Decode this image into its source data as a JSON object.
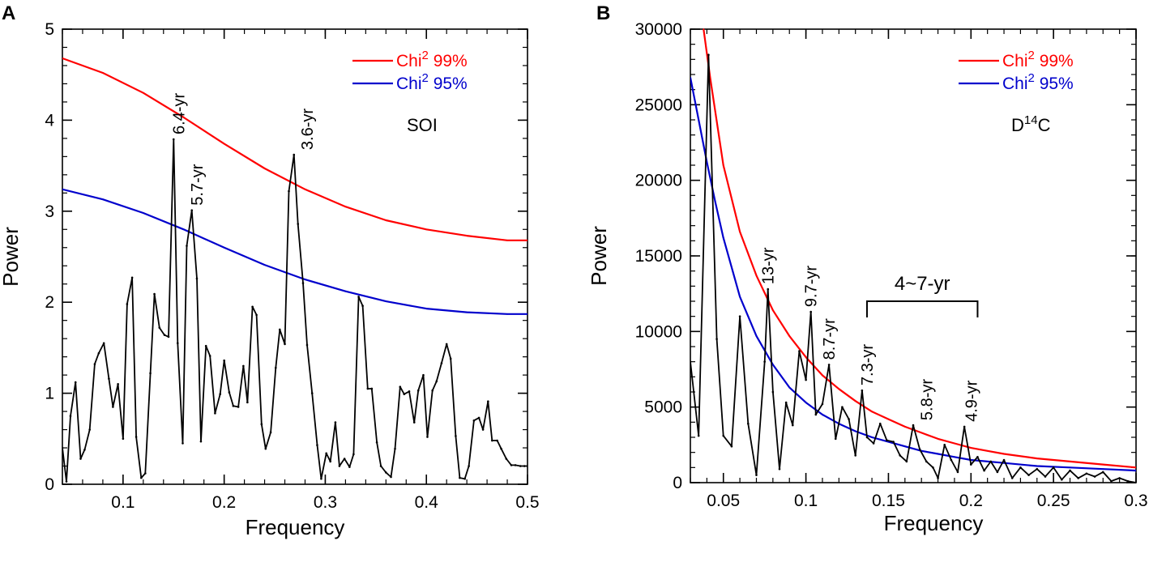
{
  "figure": {
    "panel_a_letter": "A",
    "panel_b_letter": "B"
  },
  "chart_data": [
    {
      "type": "line",
      "panel": "A",
      "title": "",
      "series_label": "SOI",
      "xlabel": "Frequency",
      "ylabel": "Power",
      "xlim": [
        0.04,
        0.5
      ],
      "ylim": [
        0,
        5
      ],
      "xticks": [
        {
          "value": 0.1,
          "label": "0.1"
        },
        {
          "value": 0.2,
          "label": "0.2"
        },
        {
          "value": 0.3,
          "label": "0.3"
        },
        {
          "value": 0.4,
          "label": "0.4"
        },
        {
          "value": 0.5,
          "label": "0.5"
        }
      ],
      "yticks": [
        {
          "value": 0,
          "label": "0"
        },
        {
          "value": 1,
          "label": "1"
        },
        {
          "value": 2,
          "label": "2"
        },
        {
          "value": 3,
          "label": "3"
        },
        {
          "value": 4,
          "label": "4"
        },
        {
          "value": 5,
          "label": "5"
        }
      ],
      "legend": [
        {
          "name": "Chi",
          "sup": "2",
          "suffix": " 99%",
          "color": "#ff0000"
        },
        {
          "name": "Chi",
          "sup": "2",
          "suffix": " 95%",
          "color": "#0000cc"
        }
      ],
      "series": [
        {
          "name": "Chi2 99%",
          "color": "#ff0000",
          "x": [
            0.04,
            0.08,
            0.12,
            0.16,
            0.2,
            0.24,
            0.28,
            0.32,
            0.36,
            0.4,
            0.44,
            0.48,
            0.5
          ],
          "y": [
            4.68,
            4.52,
            4.3,
            4.03,
            3.74,
            3.47,
            3.24,
            3.05,
            2.9,
            2.8,
            2.73,
            2.68,
            2.68
          ]
        },
        {
          "name": "Chi2 95%",
          "color": "#0000cc",
          "x": [
            0.04,
            0.08,
            0.12,
            0.16,
            0.2,
            0.24,
            0.28,
            0.32,
            0.36,
            0.4,
            0.44,
            0.48,
            0.5
          ],
          "y": [
            3.24,
            3.13,
            2.98,
            2.8,
            2.6,
            2.41,
            2.25,
            2.12,
            2.01,
            1.93,
            1.89,
            1.87,
            1.87
          ]
        },
        {
          "name": "SOI power",
          "color": "#000000",
          "x": [
            0.04,
            0.044,
            0.048,
            0.053,
            0.058,
            0.062,
            0.067,
            0.072,
            0.076,
            0.081,
            0.086,
            0.09,
            0.095,
            0.1,
            0.104,
            0.109,
            0.113,
            0.118,
            0.122,
            0.127,
            0.131,
            0.136,
            0.141,
            0.145,
            0.15,
            0.154,
            0.159,
            0.163,
            0.168,
            0.173,
            0.177,
            0.182,
            0.186,
            0.191,
            0.196,
            0.2,
            0.205,
            0.209,
            0.214,
            0.219,
            0.223,
            0.228,
            0.232,
            0.237,
            0.241,
            0.246,
            0.251,
            0.255,
            0.26,
            0.264,
            0.269,
            0.273,
            0.278,
            0.282,
            0.287,
            0.292,
            0.296,
            0.301,
            0.305,
            0.31,
            0.314,
            0.319,
            0.324,
            0.328,
            0.333,
            0.337,
            0.342,
            0.346,
            0.351,
            0.355,
            0.36,
            0.365,
            0.369,
            0.374,
            0.378,
            0.383,
            0.388,
            0.392,
            0.397,
            0.401,
            0.406,
            0.41,
            0.415,
            0.42,
            0.424,
            0.429,
            0.433,
            0.438,
            0.442,
            0.447,
            0.452,
            0.456,
            0.461,
            0.465,
            0.47,
            0.474,
            0.479,
            0.484,
            0.488,
            0.493,
            0.497,
            0.5
          ],
          "y": [
            0.4,
            0.03,
            0.75,
            1.12,
            0.28,
            0.38,
            0.6,
            1.32,
            1.44,
            1.55,
            1.16,
            0.85,
            1.1,
            0.5,
            1.98,
            2.27,
            0.52,
            0.07,
            0.12,
            1.22,
            2.09,
            1.72,
            1.64,
            1.62,
            3.79,
            1.55,
            0.45,
            2.62,
            3.01,
            2.26,
            0.47,
            1.52,
            1.41,
            0.78,
            0.99,
            1.36,
            1.01,
            0.86,
            0.85,
            1.3,
            0.9,
            1.95,
            1.86,
            0.66,
            0.39,
            0.57,
            1.28,
            1.7,
            1.54,
            3.22,
            3.62,
            2.86,
            2.21,
            1.53,
            1.0,
            0.43,
            0.06,
            0.34,
            0.25,
            0.68,
            0.2,
            0.28,
            0.19,
            0.33,
            2.06,
            1.96,
            1.05,
            1.05,
            0.46,
            0.2,
            0.13,
            0.08,
            0.39,
            1.07,
            0.99,
            1.02,
            0.68,
            1.03,
            1.2,
            0.52,
            1.03,
            1.13,
            1.33,
            1.54,
            1.38,
            0.53,
            0.07,
            0.06,
            0.2,
            0.7,
            0.73,
            0.6,
            0.91,
            0.48,
            0.48,
            0.39,
            0.28,
            0.21,
            0.21,
            0.2,
            0.2,
            0.2
          ]
        }
      ],
      "annotations": [
        {
          "text": "6.4-yr",
          "x": 0.155,
          "y": 3.79
        },
        {
          "text": "5.7-yr",
          "x": 0.173,
          "y": 3.01
        },
        {
          "text": "3.6-yr",
          "x": 0.282,
          "y": 3.62
        }
      ]
    },
    {
      "type": "line",
      "panel": "B",
      "title": "",
      "series_label_main": "D",
      "series_label_sup": "14",
      "series_label_tail": "C",
      "xlabel": "Frequency",
      "ylabel": "Power",
      "xlim": [
        0.03,
        0.3
      ],
      "ylim": [
        0,
        30000
      ],
      "xticks": [
        {
          "value": 0.05,
          "label": "0.05"
        },
        {
          "value": 0.1,
          "label": "0.1"
        },
        {
          "value": 0.15,
          "label": "0.15"
        },
        {
          "value": 0.2,
          "label": "0.2"
        },
        {
          "value": 0.25,
          "label": "0.25"
        },
        {
          "value": 0.3,
          "label": "0.3"
        }
      ],
      "yticks": [
        {
          "value": 0,
          "label": "0"
        },
        {
          "value": 5000,
          "label": "5000"
        },
        {
          "value": 10000,
          "label": "10000"
        },
        {
          "value": 15000,
          "label": "15000"
        },
        {
          "value": 20000,
          "label": "20000"
        },
        {
          "value": 25000,
          "label": "25000"
        },
        {
          "value": 30000,
          "label": "30000"
        }
      ],
      "legend": [
        {
          "name": "Chi",
          "sup": "2",
          "suffix": " 99%",
          "color": "#ff0000"
        },
        {
          "name": "Chi",
          "sup": "2",
          "suffix": " 95%",
          "color": "#0000cc"
        }
      ],
      "series": [
        {
          "name": "Chi2 99%",
          "color": "#ff0000",
          "x": [
            0.038,
            0.042,
            0.05,
            0.06,
            0.07,
            0.08,
            0.09,
            0.1,
            0.11,
            0.12,
            0.13,
            0.14,
            0.15,
            0.16,
            0.17,
            0.18,
            0.19,
            0.2,
            0.21,
            0.22,
            0.24,
            0.26,
            0.28,
            0.3
          ],
          "y": [
            30000,
            26800,
            21000,
            16600,
            13700,
            11400,
            9700,
            8300,
            7100,
            6200,
            5400,
            4700,
            4200,
            3700,
            3300,
            2900,
            2600,
            2300,
            2100,
            1900,
            1600,
            1400,
            1200,
            1000
          ]
        },
        {
          "name": "Chi2 95%",
          "color": "#0000cc",
          "x": [
            0.03,
            0.035,
            0.04,
            0.045,
            0.05,
            0.06,
            0.07,
            0.08,
            0.09,
            0.1,
            0.11,
            0.12,
            0.13,
            0.14,
            0.15,
            0.16,
            0.17,
            0.18,
            0.19,
            0.2,
            0.22,
            0.24,
            0.26,
            0.28,
            0.3
          ],
          "y": [
            26800,
            24000,
            21200,
            18600,
            16200,
            12300,
            9700,
            7800,
            6300,
            5300,
            4500,
            3900,
            3400,
            3000,
            2700,
            2400,
            2100,
            1900,
            1700,
            1500,
            1300,
            1100,
            1000,
            900,
            800
          ]
        },
        {
          "name": "D14C power",
          "color": "#000000",
          "x": [
            0.03,
            0.035,
            0.041,
            0.046,
            0.05,
            0.055,
            0.06,
            0.065,
            0.07,
            0.075,
            0.077,
            0.08,
            0.084,
            0.088,
            0.092,
            0.096,
            0.1,
            0.103,
            0.106,
            0.11,
            0.114,
            0.118,
            0.122,
            0.126,
            0.13,
            0.134,
            0.137,
            0.141,
            0.145,
            0.149,
            0.153,
            0.157,
            0.161,
            0.165,
            0.169,
            0.173,
            0.177,
            0.18,
            0.184,
            0.188,
            0.192,
            0.196,
            0.2,
            0.204,
            0.208,
            0.212,
            0.216,
            0.22,
            0.225,
            0.23,
            0.235,
            0.24,
            0.245,
            0.25,
            0.255,
            0.26,
            0.265,
            0.27,
            0.275,
            0.28,
            0.285,
            0.29,
            0.295,
            0.3
          ],
          "y": [
            8000,
            3100,
            28300,
            9500,
            3100,
            2400,
            11000,
            3900,
            500,
            8000,
            12800,
            6000,
            900,
            5300,
            3800,
            8700,
            6800,
            11300,
            4500,
            5200,
            7800,
            2900,
            5000,
            4200,
            1800,
            6100,
            3000,
            2600,
            3900,
            2800,
            2700,
            1800,
            1400,
            3800,
            2200,
            1400,
            1000,
            300,
            2500,
            1500,
            700,
            3700,
            1200,
            1700,
            800,
            1400,
            700,
            1500,
            300,
            1000,
            500,
            900,
            400,
            1000,
            200,
            800,
            300,
            600,
            400,
            700,
            100,
            300,
            100,
            0
          ]
        }
      ],
      "annotations": [
        {
          "text": "13-yr",
          "x": 0.077,
          "y": 12800
        },
        {
          "text": "9.7-yr",
          "x": 0.103,
          "y": 11300
        },
        {
          "text": "8.7-yr",
          "x": 0.114,
          "y": 7800
        },
        {
          "text": "7.3-yr",
          "x": 0.137,
          "y": 6100
        },
        {
          "text": "5.8-yr",
          "x": 0.173,
          "y": 3800
        },
        {
          "text": "4.9-yr",
          "x": 0.2,
          "y": 3700
        }
      ],
      "bracket": {
        "label": "4~7-yr",
        "x_start": 0.137,
        "x_end": 0.204,
        "y": 12000
      }
    }
  ]
}
